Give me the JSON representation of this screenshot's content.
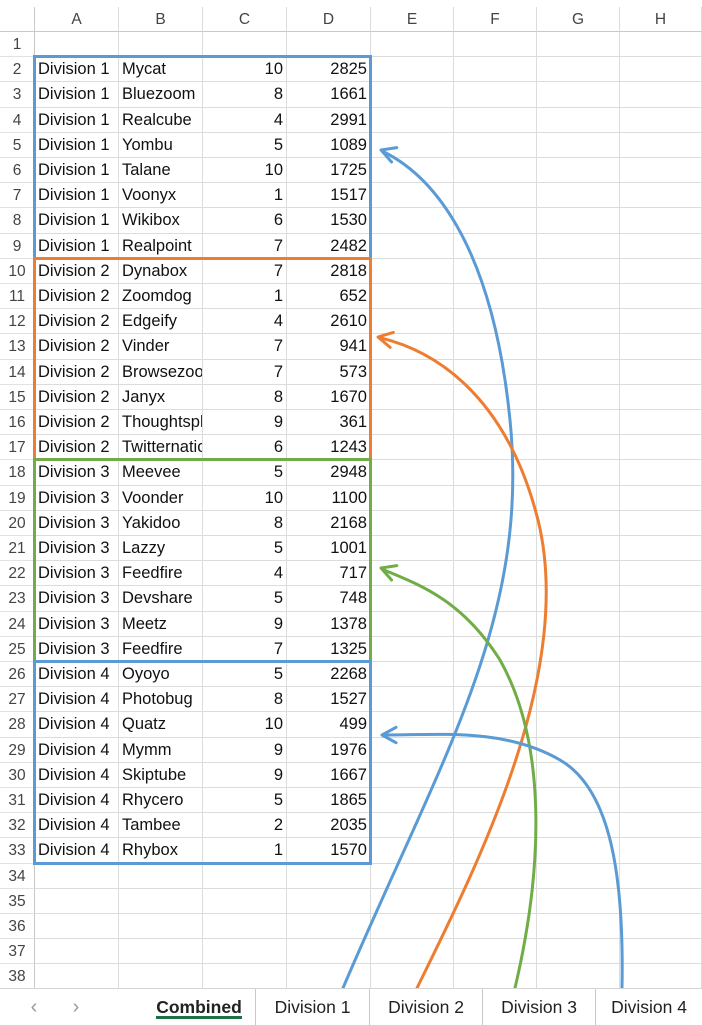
{
  "columns": [
    "A",
    "B",
    "C",
    "D",
    "E",
    "F",
    "G",
    "H"
  ],
  "rows": [
    [
      "",
      "",
      "",
      ""
    ],
    [
      "Division 1",
      "Mycat",
      "10",
      "2825"
    ],
    [
      "Division 1",
      "Bluezoom",
      "8",
      "1661"
    ],
    [
      "Division 1",
      "Realcube",
      "4",
      "2991"
    ],
    [
      "Division 1",
      "Yombu",
      "5",
      "1089"
    ],
    [
      "Division 1",
      "Talane",
      "10",
      "1725"
    ],
    [
      "Division 1",
      "Voonyx",
      "1",
      "1517"
    ],
    [
      "Division 1",
      "Wikibox",
      "6",
      "1530"
    ],
    [
      "Division 1",
      "Realpoint",
      "7",
      "2482"
    ],
    [
      "Division 2",
      "Dynabox",
      "7",
      "2818"
    ],
    [
      "Division 2",
      "Zoomdog",
      "1",
      "652"
    ],
    [
      "Division 2",
      "Edgeify",
      "4",
      "2610"
    ],
    [
      "Division 2",
      "Vinder",
      "7",
      "941"
    ],
    [
      "Division 2",
      "Browsezoom",
      "7",
      "573"
    ],
    [
      "Division 2",
      "Janyx",
      "8",
      "1670"
    ],
    [
      "Division 2",
      "Thoughtsphere",
      "9",
      "361"
    ],
    [
      "Division 2",
      "Twitternation",
      "6",
      "1243"
    ],
    [
      "Division 3",
      "Meevee",
      "5",
      "2948"
    ],
    [
      "Division 3",
      "Voonder",
      "10",
      "1100"
    ],
    [
      "Division 3",
      "Yakidoo",
      "8",
      "2168"
    ],
    [
      "Division 3",
      "Lazzy",
      "5",
      "1001"
    ],
    [
      "Division 3",
      "Feedfire",
      "4",
      "717"
    ],
    [
      "Division 3",
      "Devshare",
      "5",
      "748"
    ],
    [
      "Division 3",
      "Meetz",
      "9",
      "1378"
    ],
    [
      "Division 3",
      "Feedfire",
      "7",
      "1325"
    ],
    [
      "Division 4",
      "Oyoyo",
      "5",
      "2268"
    ],
    [
      "Division 4",
      "Photobug",
      "8",
      "1527"
    ],
    [
      "Division 4",
      "Quatz",
      "10",
      "499"
    ],
    [
      "Division 4",
      "Mymm",
      "9",
      "1976"
    ],
    [
      "Division 4",
      "Skiptube",
      "9",
      "1667"
    ],
    [
      "Division 4",
      "Rhycero",
      "5",
      "1865"
    ],
    [
      "Division 4",
      "Tambee",
      "2",
      "2035"
    ],
    [
      "Division 4",
      "Rhybox",
      "1",
      "1570"
    ],
    [
      "",
      "",
      "",
      ""
    ],
    [
      "",
      "",
      "",
      ""
    ],
    [
      "",
      "",
      "",
      ""
    ],
    [
      "",
      "",
      "",
      ""
    ],
    [
      "",
      "",
      "",
      ""
    ]
  ],
  "groups": [
    {
      "sheet": "Division 1",
      "first_row": 2,
      "last_row": 9,
      "color": "#5b9bd5"
    },
    {
      "sheet": "Division 2",
      "first_row": 10,
      "last_row": 17,
      "color": "#ed7d31"
    },
    {
      "sheet": "Division 3",
      "first_row": 18,
      "last_row": 25,
      "color": "#70ad47"
    },
    {
      "sheet": "Division 4",
      "first_row": 26,
      "last_row": 33,
      "color": "#5b9bd5"
    }
  ],
  "tabs": {
    "prev_icon": "‹",
    "next_icon": "›",
    "items": [
      "Combined",
      "Division 1",
      "Division 2",
      "Division 3",
      "Division 4"
    ],
    "active": "Combined"
  }
}
